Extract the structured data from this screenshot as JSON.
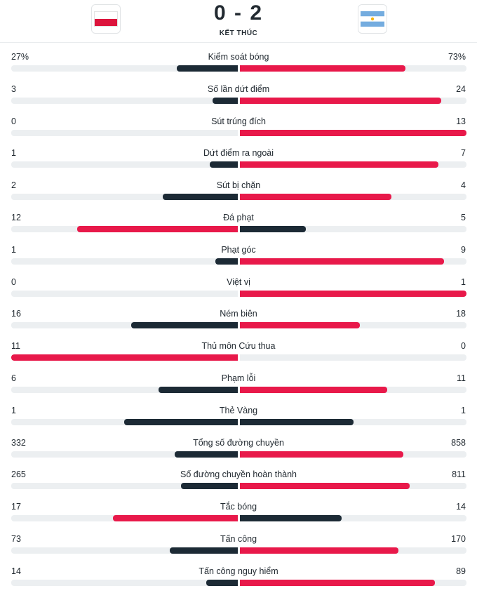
{
  "match": {
    "score": "0 - 2",
    "status": "KẾT THÚC",
    "home_flag": "poland-flag-icon",
    "away_flag": "argentina-flag-icon"
  },
  "colors": {
    "home_bar": "#1c2a35",
    "away_bar": "#e8194a",
    "track": "#eceff1"
  },
  "stats": [
    {
      "label": "Kiểm soát bóng",
      "home": "27%",
      "away": "73%",
      "home_fill": 0.27,
      "away_fill": 0.73,
      "home_leads": false
    },
    {
      "label": "Số lần dứt điểm",
      "home": "3",
      "away": "24",
      "home_fill": 0.11,
      "away_fill": 0.89,
      "home_leads": false
    },
    {
      "label": "Sút trúng đích",
      "home": "0",
      "away": "13",
      "home_fill": 0.0,
      "away_fill": 1.0,
      "home_leads": false
    },
    {
      "label": "Dứt điểm ra ngoài",
      "home": "1",
      "away": "7",
      "home_fill": 0.125,
      "away_fill": 0.875,
      "home_leads": false
    },
    {
      "label": "Sút bị chặn",
      "home": "2",
      "away": "4",
      "home_fill": 0.33,
      "away_fill": 0.67,
      "home_leads": false
    },
    {
      "label": "Đá phạt",
      "home": "12",
      "away": "5",
      "home_fill": 0.71,
      "away_fill": 0.29,
      "home_leads": true
    },
    {
      "label": "Phạt góc",
      "home": "1",
      "away": "9",
      "home_fill": 0.1,
      "away_fill": 0.9,
      "home_leads": false
    },
    {
      "label": "Việt vị",
      "home": "0",
      "away": "1",
      "home_fill": 0.0,
      "away_fill": 1.0,
      "home_leads": false
    },
    {
      "label": "Ném biên",
      "home": "16",
      "away": "18",
      "home_fill": 0.47,
      "away_fill": 0.53,
      "home_leads": false
    },
    {
      "label": "Thủ môn Cứu thua",
      "home": "11",
      "away": "0",
      "home_fill": 1.0,
      "away_fill": 0.0,
      "home_leads": true
    },
    {
      "label": "Phạm lỗi",
      "home": "6",
      "away": "11",
      "home_fill": 0.35,
      "away_fill": 0.65,
      "home_leads": false
    },
    {
      "label": "Thẻ Vàng",
      "home": "1",
      "away": "1",
      "home_fill": 0.5,
      "away_fill": 0.5,
      "home_leads": false,
      "tie": true
    },
    {
      "label": "Tổng số đường chuyền",
      "home": "332",
      "away": "858",
      "home_fill": 0.28,
      "away_fill": 0.72,
      "home_leads": false
    },
    {
      "label": "Số đường chuyền hoàn thành",
      "home": "265",
      "away": "811",
      "home_fill": 0.25,
      "away_fill": 0.75,
      "home_leads": false
    },
    {
      "label": "Tắc bóng",
      "home": "17",
      "away": "14",
      "home_fill": 0.55,
      "away_fill": 0.45,
      "home_leads": true
    },
    {
      "label": "Tấn công",
      "home": "73",
      "away": "170",
      "home_fill": 0.3,
      "away_fill": 0.7,
      "home_leads": false
    },
    {
      "label": "Tấn công nguy hiểm",
      "home": "14",
      "away": "89",
      "home_fill": 0.14,
      "away_fill": 0.86,
      "home_leads": false
    }
  ]
}
